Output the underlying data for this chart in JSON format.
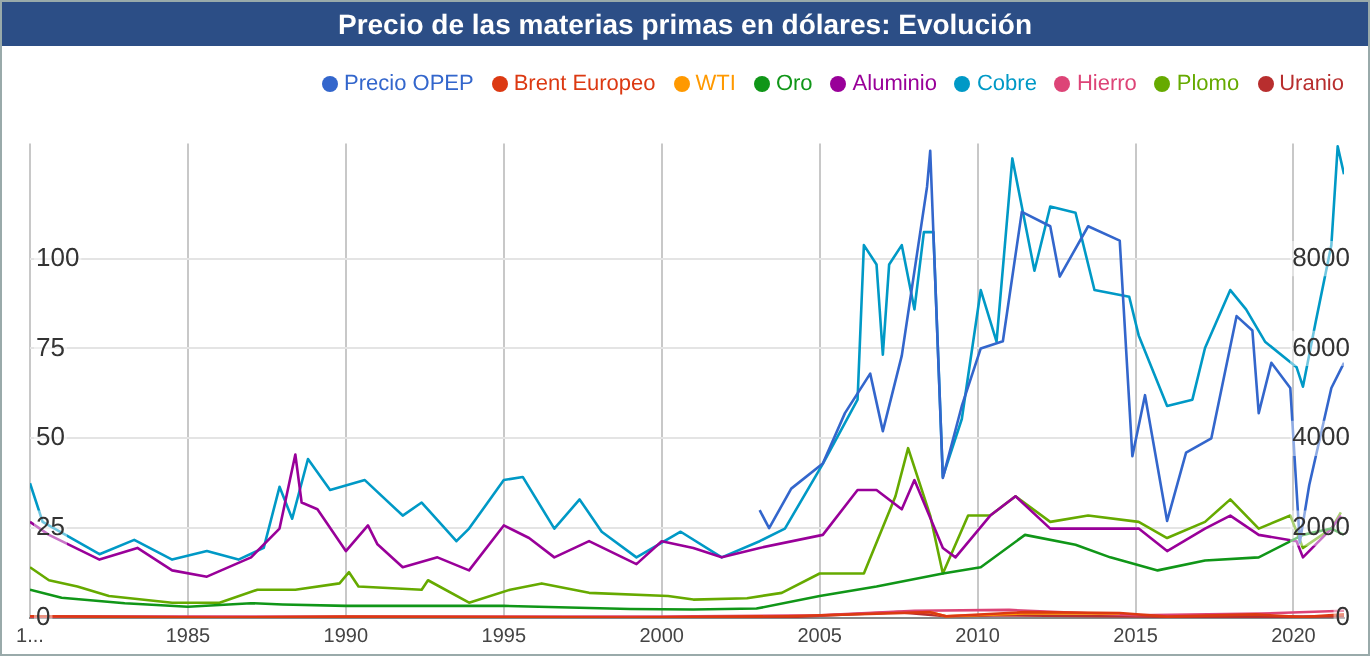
{
  "chart_data": {
    "type": "line",
    "title": "Precio de las materias primas en dólares: Evolución",
    "xlim": [
      1980,
      2021.6
    ],
    "xticks": [
      {
        "value": 1980,
        "label": "1..."
      },
      1985,
      1990,
      1995,
      2000,
      2005,
      2010,
      2015,
      2020
    ],
    "ylim": [
      0,
      132
    ],
    "yticks": [
      0,
      25,
      50,
      75,
      100
    ],
    "y2lim": [
      0,
      10560
    ],
    "y2ticks": [
      0,
      2000,
      4000,
      6000,
      8000
    ],
    "grid": true,
    "legend": "top right",
    "marker": "none",
    "line_style": "solid",
    "series": [
      {
        "name": "Precio OPEP",
        "color": "#3366cc",
        "x": [
          2003.1,
          2003.4,
          2004.1,
          2005.1,
          2005.8,
          2006.6,
          2007.0,
          2007.6,
          2008.4,
          2008.5,
          2008.9,
          2009.5,
          2010.1,
          2010.8,
          2011.4,
          2012.3,
          2012.6,
          2013.5,
          2014.5,
          2014.9,
          2015.3,
          2016.0,
          2016.6,
          2017.4,
          2018.2,
          2018.7,
          2018.9,
          2019.3,
          2019.9,
          2020.2,
          2020.5,
          2021.2,
          2021.6
        ],
        "values": [
          30,
          25,
          36,
          43,
          57,
          68,
          52,
          73,
          120,
          130,
          39,
          59,
          75,
          77,
          113,
          109,
          95,
          109,
          105,
          45,
          62,
          27,
          46,
          50,
          84,
          80,
          57,
          71,
          64,
          21,
          37,
          64,
          71
        ]
      },
      {
        "name": "Brent Europeo",
        "color": "#dc3912",
        "axis": "y2",
        "x": [
          1980,
          1986,
          1990,
          1999,
          2004,
          2008.5,
          2009,
          2011.5,
          2014.5,
          2016,
          2018.8,
          2020.3,
          2021.6
        ],
        "values": [
          40,
          10,
          30,
          10,
          40,
          130,
          40,
          130,
          110,
          30,
          80,
          20,
          80
        ]
      },
      {
        "name": "WTI",
        "color": "#ff9900",
        "axis": "y2",
        "x": [
          2008.5,
          2009,
          2011.5,
          2014.5
        ],
        "values": [
          130,
          40,
          100,
          100
        ]
      },
      {
        "name": "Oro",
        "color": "#109618",
        "axis": "y2",
        "x": [
          1980,
          1981,
          1983,
          1985,
          1987,
          1988,
          1990,
          1995,
          1999,
          2001,
          2003,
          2005,
          2006.8,
          2008.9,
          2010.1,
          2011.5,
          2013.1,
          2014.2,
          2015.7,
          2017.2,
          2018.9,
          2020.3,
          2021.2,
          2021.6
        ],
        "values": [
          630,
          450,
          330,
          250,
          330,
          300,
          270,
          270,
          200,
          190,
          210,
          490,
          700,
          990,
          1130,
          1850,
          1630,
          1350,
          1060,
          1280,
          1350,
          1850,
          1990,
          1850
        ]
      },
      {
        "name": "Aluminio",
        "color": "#990099",
        "axis": "y2",
        "x": [
          1980,
          1980.6,
          1982.2,
          1983.4,
          1984.5,
          1985.6,
          1987,
          1987.9,
          1988.4,
          1988.6,
          1989.1,
          1990,
          1990.7,
          1991,
          1991.8,
          1992.9,
          1993.9,
          1995,
          1995.8,
          1996.6,
          1997.7,
          1999.2,
          2000,
          2001,
          2001.9,
          2003.1,
          2005.1,
          2006.2,
          2006.8,
          2007.6,
          2008,
          2008.9,
          2009.3,
          2010.4,
          2011.2,
          2012.3,
          2013.5,
          2015.1,
          2016,
          2017.2,
          2018,
          2018.9,
          2020.1,
          2020.3,
          2021.2,
          2021.5
        ],
        "values": [
          2140,
          1850,
          1300,
          1560,
          1060,
          920,
          1350,
          1990,
          3640,
          2570,
          2420,
          1490,
          2060,
          1640,
          1130,
          1350,
          1060,
          2060,
          1780,
          1350,
          1710,
          1200,
          1710,
          1560,
          1350,
          1560,
          1850,
          2850,
          2850,
          2420,
          3070,
          1560,
          1350,
          2280,
          2710,
          1990,
          1990,
          1990,
          1490,
          1990,
          2280,
          1850,
          1710,
          1350,
          1990,
          2280
        ]
      },
      {
        "name": "Cobre",
        "color": "#0099c6",
        "axis": "y2",
        "x": [
          1980,
          1980.4,
          1982.2,
          1983.3,
          1984.5,
          1985.6,
          1986.6,
          1987.4,
          1987.9,
          1988.3,
          1988.8,
          1989.5,
          1990.6,
          1991.8,
          1992.4,
          1993.5,
          1993.9,
          1995,
          1995.6,
          1996.6,
          1997.4,
          1998.1,
          1999.2,
          2000.6,
          2001.9,
          2003.1,
          2003.9,
          2005.1,
          2006.2,
          2006.4,
          2006.8,
          2007,
          2007.2,
          2007.6,
          2008,
          2008.3,
          2008.6,
          2008.9,
          2009.5,
          2010.1,
          2010.6,
          2011.1,
          2011.8,
          2012.3,
          2013.1,
          2013.7,
          2014.8,
          2015.1,
          2016,
          2016.8,
          2017.2,
          2018,
          2018.5,
          2019.1,
          2020.1,
          2020.3,
          2020.7,
          2021.2,
          2021.4,
          2021.6
        ],
        "values": [
          3000,
          2140,
          1420,
          1740,
          1300,
          1490,
          1300,
          1560,
          2920,
          2210,
          3540,
          2850,
          3070,
          2280,
          2570,
          1710,
          1990,
          3070,
          3140,
          1990,
          2640,
          1920,
          1350,
          1920,
          1350,
          1710,
          1990,
          3430,
          4860,
          8300,
          7870,
          5860,
          7870,
          8300,
          6870,
          8590,
          8590,
          3140,
          4430,
          7300,
          6150,
          10230,
          7730,
          9160,
          9020,
          7300,
          7150,
          6290,
          4720,
          4860,
          6010,
          7300,
          6870,
          6150,
          5580,
          5150,
          6580,
          8300,
          10500,
          9880
        ]
      },
      {
        "name": "Hierro",
        "color": "#dd4477",
        "axis": "y2",
        "x": [
          1980,
          1990,
          2000,
          2005,
          2008,
          2011,
          2015,
          2019,
          2021.6
        ],
        "values": [
          30,
          30,
          30,
          60,
          160,
          180,
          60,
          100,
          160
        ]
      },
      {
        "name": "Plomo",
        "color": "#66aa00",
        "axis": "y2",
        "x": [
          1980,
          1980.6,
          1981.5,
          1982.5,
          1984.5,
          1986,
          1987.2,
          1988.4,
          1989.8,
          1990.1,
          1990.4,
          1992.4,
          1992.6,
          1993.9,
          1995.2,
          1996.2,
          1997.7,
          2000.2,
          2001,
          2002.7,
          2003.8,
          2005,
          2006.4,
          2007.4,
          2007.8,
          2008.5,
          2008.9,
          2009.7,
          2010.4,
          2011.2,
          2012.3,
          2013.5,
          2015.1,
          2016,
          2017.2,
          2018,
          2018.9,
          2019.9,
          2020.3,
          2021.2,
          2021.5
        ],
        "values": [
          1130,
          840,
          700,
          490,
          340,
          340,
          630,
          630,
          770,
          1020,
          700,
          630,
          840,
          340,
          630,
          770,
          560,
          490,
          410,
          440,
          560,
          990,
          990,
          2710,
          3780,
          2280,
          990,
          2280,
          2280,
          2710,
          2140,
          2280,
          2140,
          1780,
          2140,
          2640,
          1990,
          2280,
          1560,
          1990,
          2350
        ]
      },
      {
        "name": "Uranio",
        "color": "#b82e2e",
        "axis": "y2",
        "x": [
          1980,
          1985,
          1990,
          1995,
          2000,
          2004,
          2007.5,
          2009,
          2011,
          2016,
          2020,
          2021.6
        ],
        "values": [
          40,
          20,
          10,
          10,
          10,
          20,
          130,
          40,
          60,
          30,
          30,
          40
        ]
      }
    ]
  }
}
